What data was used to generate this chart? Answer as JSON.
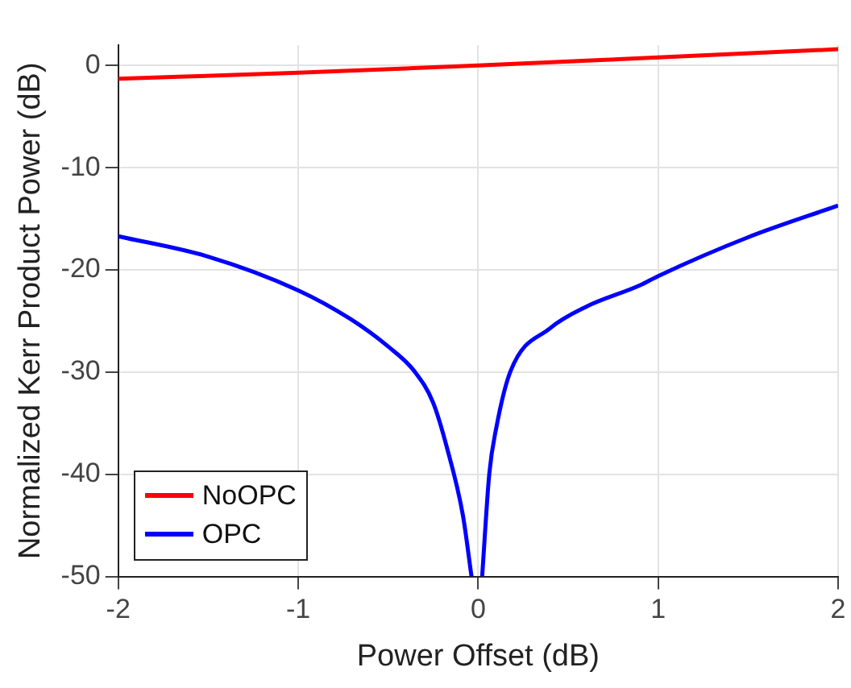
{
  "chart_data": {
    "type": "line",
    "xlabel": "Power Offset (dB)",
    "ylabel": "Normalized Kerr Product Power (dB)",
    "xlim": [
      -2,
      2
    ],
    "xticks": [
      -2,
      -1,
      0,
      1,
      2
    ],
    "ylim": [
      -50,
      2
    ],
    "yticks": [
      -50,
      -40,
      -30,
      -20,
      -10,
      0
    ],
    "grid": true,
    "legend": "bottom left",
    "marker": "none",
    "line_style": "solid",
    "series": [
      {
        "name": "NoOPC",
        "color": "#ff0000",
        "x": [
          -2,
          -1,
          0,
          1,
          2
        ],
        "values": [
          -1.3,
          -0.7,
          0,
          0.8,
          1.6
        ]
      },
      {
        "name": "OPC",
        "color": "#0000ff",
        "x": [
          -2,
          -1.5,
          -1,
          -0.71,
          -0.5,
          -0.355,
          -0.25,
          -0.175,
          -0.085,
          -0.037,
          0,
          0.022,
          0.062,
          0.1,
          0.18,
          0.4,
          0.6,
          0.9,
          1,
          1.5,
          2
        ],
        "values": [
          -16.7,
          -18.7,
          -22,
          -24.8,
          -27.5,
          -29.9,
          -33,
          -37.3,
          -44,
          -50,
          null,
          -50,
          -39.9,
          -35.5,
          -29.9,
          -25.7,
          -23.6,
          -21.5,
          -20.6,
          -16.8,
          -13.7
        ]
      }
    ]
  }
}
